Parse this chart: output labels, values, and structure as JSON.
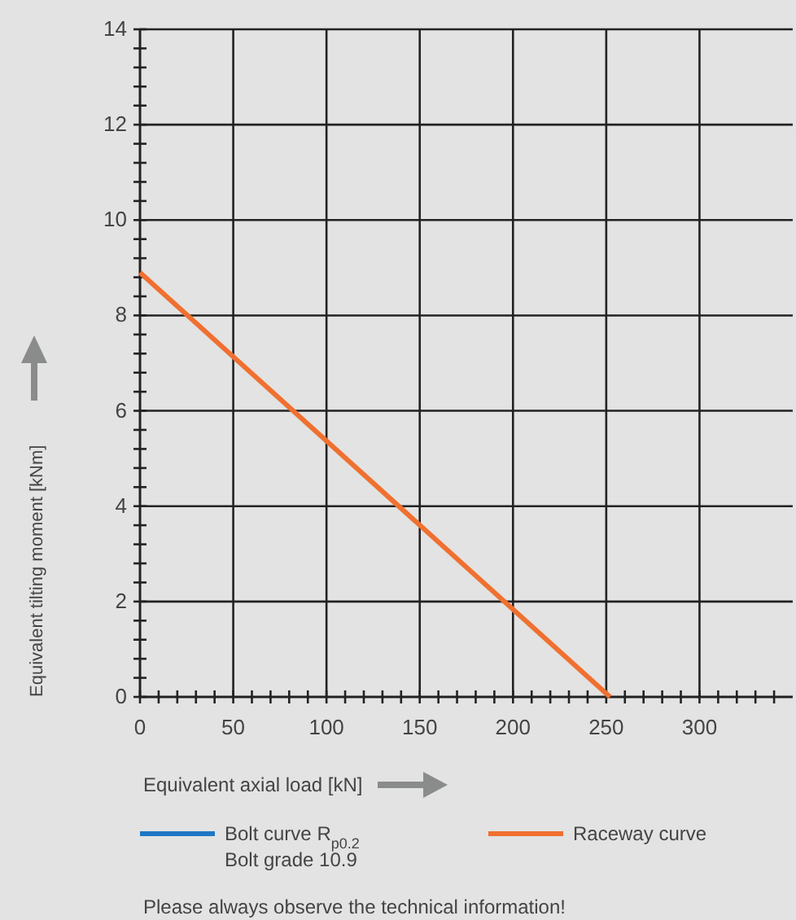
{
  "chart_data": {
    "type": "line",
    "xlabel": "Equivalent axial load [kN]",
    "ylabel": "Equivalent tilting moment [kNm]",
    "xlim": [
      0,
      350
    ],
    "ylim": [
      0,
      14
    ],
    "xticks": [
      0,
      {
        "value": 10,
        "label": null
      },
      {
        "value": 20,
        "label": null
      },
      {
        "value": 30,
        "label": null
      },
      {
        "value": 40,
        "label": null
      },
      50,
      {
        "value": 60,
        "label": null
      },
      {
        "value": 70,
        "label": null
      },
      {
        "value": 80,
        "label": null
      },
      {
        "value": 90,
        "label": null
      },
      100,
      {
        "value": 110,
        "label": null
      },
      {
        "value": 120,
        "label": null
      },
      {
        "value": 130,
        "label": null
      },
      {
        "value": 140,
        "label": null
      },
      150,
      {
        "value": 160,
        "label": null
      },
      {
        "value": 170,
        "label": null
      },
      {
        "value": 180,
        "label": null
      },
      {
        "value": 190,
        "label": null
      },
      200,
      {
        "value": 210,
        "label": null
      },
      {
        "value": 220,
        "label": null
      },
      {
        "value": 230,
        "label": null
      },
      {
        "value": 240,
        "label": null
      },
      250,
      {
        "value": 260,
        "label": null
      },
      {
        "value": 270,
        "label": null
      },
      {
        "value": 280,
        "label": null
      },
      {
        "value": 290,
        "label": null
      },
      300,
      {
        "value": 310,
        "label": null
      },
      {
        "value": 320,
        "label": null
      },
      {
        "value": 330,
        "label": null
      },
      {
        "value": 340,
        "label": null
      }
    ],
    "yticks": [
      0,
      {
        "value": 0.4,
        "label": null
      },
      {
        "value": 0.8,
        "label": null
      },
      {
        "value": 1.2,
        "label": null
      },
      {
        "value": 1.6,
        "label": null
      },
      2,
      {
        "value": 2.4,
        "label": null
      },
      {
        "value": 2.8,
        "label": null
      },
      {
        "value": 3.2,
        "label": null
      },
      {
        "value": 3.6,
        "label": null
      },
      4,
      {
        "value": 4.4,
        "label": null
      },
      {
        "value": 4.8,
        "label": null
      },
      {
        "value": 5.2,
        "label": null
      },
      {
        "value": 5.6,
        "label": null
      },
      6,
      {
        "value": 6.4,
        "label": null
      },
      {
        "value": 6.8,
        "label": null
      },
      {
        "value": 7.2,
        "label": null
      },
      {
        "value": 7.6,
        "label": null
      },
      8,
      {
        "value": 8.4,
        "label": null
      },
      {
        "value": 8.8,
        "label": null
      },
      {
        "value": 9.2,
        "label": null
      },
      {
        "value": 9.6,
        "label": null
      },
      10,
      {
        "value": 10.4,
        "label": null
      },
      {
        "value": 10.8,
        "label": null
      },
      {
        "value": 11.2,
        "label": null
      },
      {
        "value": 11.6,
        "label": null
      },
      12,
      {
        "value": 12.4,
        "label": null
      },
      {
        "value": 12.8,
        "label": null
      },
      {
        "value": 13.2,
        "label": null
      },
      {
        "value": 13.6,
        "label": null
      },
      14
    ],
    "grid": true,
    "legend": "bottom",
    "marker": "none",
    "line_style": "solid",
    "series": [
      {
        "name": "Bolt curve R$_{p0.2}$\nBolt grade 10.9",
        "color": "#1f77c4"
      },
      {
        "name": "Raceway curve",
        "color": "#f07030",
        "x": [
          0,
          252
        ],
        "values": [
          8.9,
          0
        ]
      }
    ],
    "annotations": [
      "Please always observe the technical information!"
    ]
  }
}
